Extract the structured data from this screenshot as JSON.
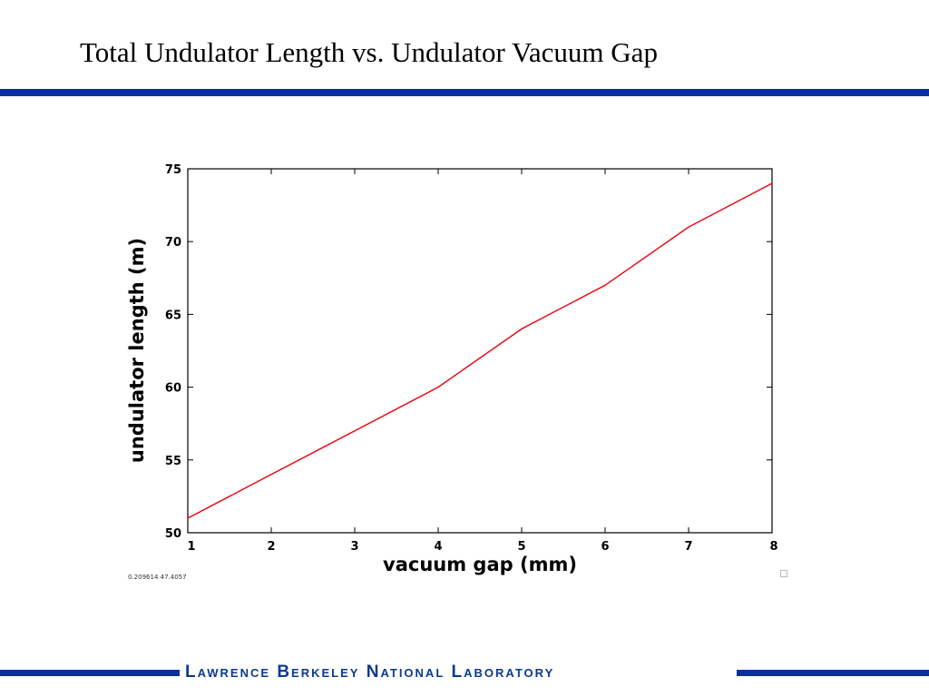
{
  "slide": {
    "title": "Total Undulator Length vs. Undulator Vacuum Gap",
    "footer": "Lawrence Berkeley National Laboratory",
    "rule_color": "#0a2fa0",
    "footer_text_color": "#0a3a8c"
  },
  "chart_data": {
    "type": "line",
    "title": "",
    "xlabel": "vacuum gap (mm)",
    "ylabel": "undulator length (m)",
    "xlim": [
      1,
      8
    ],
    "ylim": [
      50,
      75
    ],
    "xticks": [
      1,
      2,
      3,
      4,
      5,
      6,
      7,
      8
    ],
    "yticks": [
      50,
      55,
      60,
      65,
      70,
      75
    ],
    "grid": false,
    "legend": "none",
    "series": [
      {
        "color": "#e8000b",
        "x": [
          1,
          2,
          3,
          4,
          5,
          6,
          7,
          8
        ],
        "y": [
          51,
          54,
          57,
          60,
          64,
          67,
          71,
          74
        ]
      }
    ],
    "coordinate_readout": "0.209614 47.4057"
  }
}
